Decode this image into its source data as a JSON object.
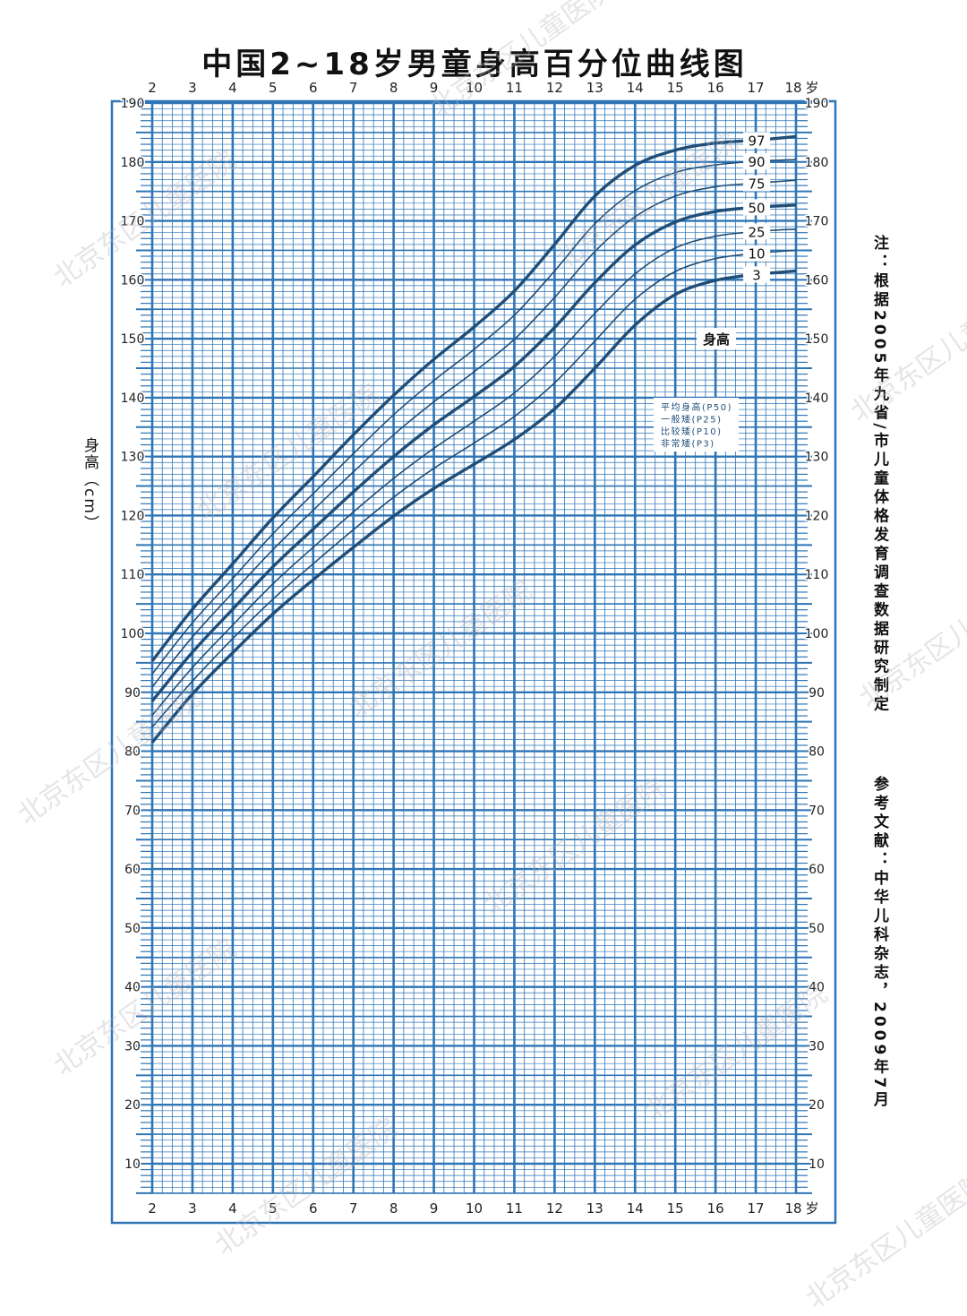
{
  "title": "中国2~18岁男童身高百分位曲线图",
  "watermark": "北京东区儿童医院",
  "notes": {
    "note": "注：根据2005年九省/市儿童体格发育调查数据研究制定",
    "reference": "参考文献：中华儿科杂志，2009年7月"
  },
  "colors": {
    "grid": "#2e75b6",
    "curve": "#1f4e79",
    "frame": "#2e75b6"
  },
  "chart_data": {
    "type": "line",
    "title": "中国2~18岁男童身高百分位曲线图",
    "ylabel": "身高（cm）",
    "x_unit": "岁",
    "xlim": [
      2,
      18
    ],
    "ylim": [
      5,
      190
    ],
    "x_ticks": [
      2,
      3,
      4,
      5,
      6,
      7,
      8,
      9,
      10,
      11,
      12,
      13,
      14,
      15,
      16,
      17,
      18
    ],
    "y_ticks": [
      10,
      20,
      30,
      40,
      50,
      60,
      70,
      80,
      90,
      100,
      110,
      120,
      130,
      140,
      150,
      160,
      170,
      180,
      190
    ],
    "grid": true,
    "curve_group_label": "身高",
    "legend": [
      "平均身高(P50)",
      "一般矮(P25)",
      "比较矮(P10)",
      "非常矮(P3)"
    ],
    "legend_placement": "center-right",
    "x": [
      2,
      3,
      4,
      5,
      6,
      7,
      8,
      9,
      10,
      11,
      12,
      13,
      14,
      15,
      16,
      17,
      18
    ],
    "series": [
      {
        "name": "97",
        "bold": true,
        "values": [
          95.3,
          104.1,
          111.8,
          119.6,
          126.6,
          133.7,
          140.4,
          146.5,
          152.0,
          158.1,
          166.0,
          174.2,
          179.4,
          182.0,
          183.2,
          183.7,
          184.3
        ]
      },
      {
        "name": "90",
        "bold": false,
        "values": [
          93.1,
          101.8,
          109.3,
          116.9,
          123.7,
          130.5,
          137.1,
          142.9,
          148.2,
          154.0,
          161.5,
          169.5,
          175.1,
          178.2,
          179.5,
          180.1,
          180.4
        ]
      },
      {
        "name": "75",
        "bold": false,
        "values": [
          90.9,
          99.4,
          106.9,
          114.2,
          120.9,
          127.4,
          133.7,
          139.3,
          144.4,
          149.9,
          157.0,
          164.8,
          170.7,
          174.2,
          175.8,
          176.4,
          176.9
        ]
      },
      {
        "name": "50",
        "bold": true,
        "values": [
          88.5,
          96.8,
          104.1,
          111.3,
          117.7,
          124.0,
          130.0,
          135.4,
          140.2,
          145.3,
          151.9,
          159.5,
          165.9,
          169.8,
          171.6,
          172.3,
          172.7
        ]
      },
      {
        "name": "25",
        "bold": false,
        "values": [
          86.1,
          94.2,
          101.4,
          108.4,
          114.6,
          120.6,
          126.3,
          131.4,
          136.0,
          140.8,
          147.0,
          154.3,
          161.0,
          165.4,
          167.4,
          168.2,
          168.6
        ]
      },
      {
        "name": "10",
        "bold": false,
        "values": [
          84.1,
          91.9,
          99.1,
          105.8,
          111.8,
          117.6,
          123.1,
          128.0,
          132.3,
          136.8,
          142.5,
          149.6,
          156.7,
          161.4,
          163.6,
          164.5,
          165.0
        ]
      },
      {
        "name": "3",
        "bold": true,
        "values": [
          81.5,
          89.7,
          96.7,
          103.3,
          109.1,
          114.6,
          119.9,
          124.6,
          128.7,
          132.9,
          138.1,
          145.0,
          152.3,
          157.5,
          159.9,
          160.9,
          161.5
        ]
      }
    ]
  }
}
